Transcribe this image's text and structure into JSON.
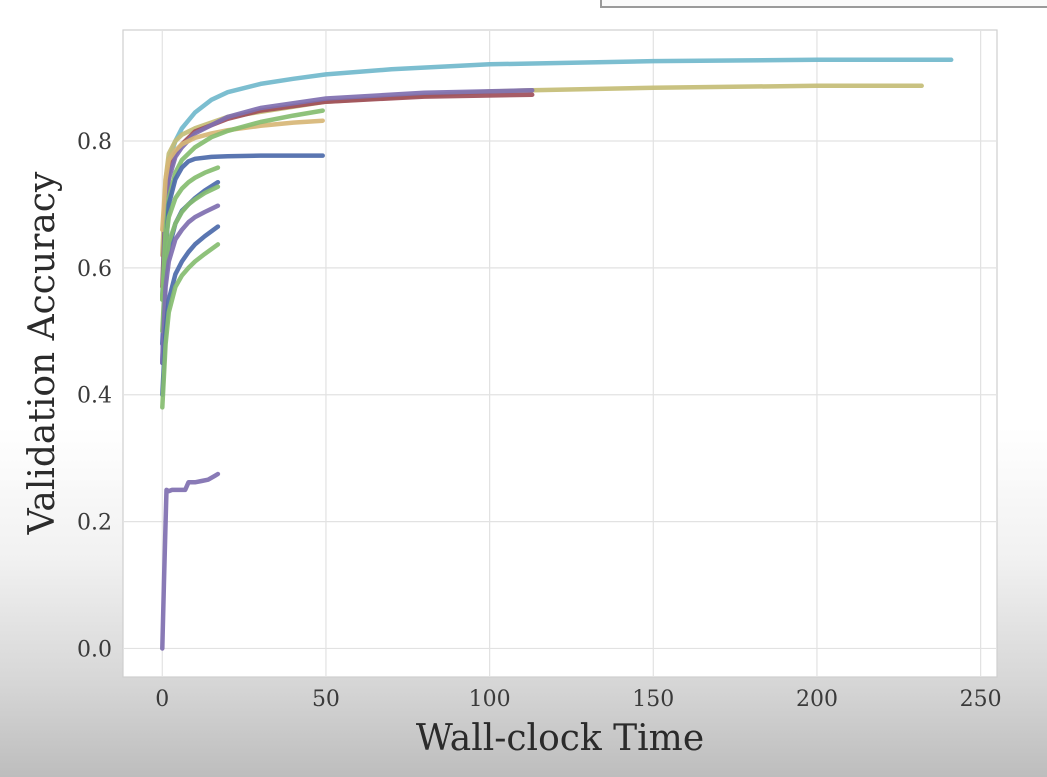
{
  "chart_data": {
    "type": "line",
    "title": "",
    "xlabel": "Wall-clock Time",
    "ylabel": "Validation Accuracy",
    "xlim": [
      -12,
      255
    ],
    "ylim": [
      -0.045,
      0.975
    ],
    "xticks": [
      0,
      50,
      100,
      150,
      200,
      250
    ],
    "yticks": [
      0.0,
      0.2,
      0.4,
      0.6,
      0.8
    ],
    "xtick_labels": [
      "0",
      "50",
      "100",
      "150",
      "200",
      "250"
    ],
    "ytick_labels": [
      "0.0",
      "0.2",
      "0.4",
      "0.6",
      "0.8"
    ],
    "grid": true,
    "legend": "none",
    "series": [
      {
        "color": "#71b8cc",
        "x": [
          0,
          1,
          2,
          4,
          6,
          10,
          15,
          20,
          30,
          40,
          50,
          70,
          100,
          150,
          200,
          241
        ],
        "y": [
          0.55,
          0.72,
          0.77,
          0.8,
          0.82,
          0.845,
          0.865,
          0.877,
          0.89,
          0.898,
          0.905,
          0.913,
          0.921,
          0.926,
          0.928,
          0.928
        ]
      },
      {
        "color": "#c4bd76",
        "x": [
          0,
          1,
          2,
          4,
          6,
          10,
          20,
          50,
          100,
          113,
          150,
          200,
          232
        ],
        "y": [
          0.62,
          0.74,
          0.78,
          0.8,
          0.81,
          0.82,
          0.838,
          0.862,
          0.878,
          0.88,
          0.884,
          0.887,
          0.887
        ]
      },
      {
        "color": "#a04f5a",
        "x": [
          0,
          1,
          2,
          4,
          6,
          10,
          20,
          30,
          50,
          80,
          113
        ],
        "y": [
          0.57,
          0.7,
          0.75,
          0.78,
          0.795,
          0.815,
          0.835,
          0.848,
          0.862,
          0.87,
          0.873
        ]
      },
      {
        "color": "#7f6fb0",
        "x": [
          0,
          1,
          2,
          4,
          6,
          10,
          20,
          30,
          50,
          80,
          113
        ],
        "y": [
          0.55,
          0.69,
          0.74,
          0.775,
          0.79,
          0.812,
          0.838,
          0.852,
          0.867,
          0.876,
          0.88
        ]
      },
      {
        "color": "#d7b676",
        "x": [
          0,
          1,
          2,
          4,
          6,
          10,
          15,
          20,
          30,
          40,
          49
        ],
        "y": [
          0.66,
          0.74,
          0.77,
          0.785,
          0.795,
          0.805,
          0.812,
          0.817,
          0.824,
          0.829,
          0.832
        ]
      },
      {
        "color": "#86bd70",
        "x": [
          0,
          1,
          2,
          4,
          6,
          10,
          15,
          20,
          30,
          40,
          49
        ],
        "y": [
          0.55,
          0.66,
          0.71,
          0.75,
          0.77,
          0.79,
          0.806,
          0.816,
          0.83,
          0.84,
          0.848
        ]
      },
      {
        "color": "#4c6aaa",
        "x": [
          0,
          1,
          2,
          4,
          6,
          8,
          10,
          15,
          20,
          30,
          40,
          49
        ],
        "y": [
          0.45,
          0.62,
          0.7,
          0.74,
          0.758,
          0.768,
          0.772,
          0.775,
          0.776,
          0.777,
          0.777,
          0.777
        ]
      },
      {
        "color": "#86bd70",
        "x": [
          0,
          1,
          2,
          4,
          6,
          8,
          10,
          13,
          17
        ],
        "y": [
          0.55,
          0.64,
          0.68,
          0.71,
          0.725,
          0.735,
          0.742,
          0.75,
          0.758
        ]
      },
      {
        "color": "#4c6aaa",
        "x": [
          0,
          1,
          2,
          4,
          6,
          8,
          10,
          13,
          17
        ],
        "y": [
          0.48,
          0.59,
          0.63,
          0.67,
          0.69,
          0.7,
          0.71,
          0.722,
          0.735
        ]
      },
      {
        "color": "#86bd70",
        "x": [
          0,
          1,
          2,
          4,
          6,
          8,
          10,
          13,
          17
        ],
        "y": [
          0.5,
          0.6,
          0.64,
          0.67,
          0.688,
          0.7,
          0.708,
          0.718,
          0.728
        ]
      },
      {
        "color": "#7f6fb0",
        "x": [
          0,
          1,
          2,
          4,
          6,
          8,
          10,
          13,
          17
        ],
        "y": [
          0.45,
          0.57,
          0.61,
          0.645,
          0.66,
          0.672,
          0.68,
          0.688,
          0.698
        ]
      },
      {
        "color": "#4c6aaa",
        "x": [
          0,
          1,
          2,
          4,
          6,
          8,
          10,
          13,
          17
        ],
        "y": [
          0.4,
          0.5,
          0.55,
          0.59,
          0.61,
          0.625,
          0.637,
          0.65,
          0.665
        ]
      },
      {
        "color": "#86bd70",
        "x": [
          0,
          1,
          2,
          4,
          6,
          8,
          10,
          13,
          17
        ],
        "y": [
          0.38,
          0.48,
          0.53,
          0.57,
          0.588,
          0.6,
          0.61,
          0.622,
          0.637
        ]
      },
      {
        "color": "#7f6fb0",
        "x": [
          0,
          0.5,
          1,
          1.3,
          2,
          3,
          5,
          7,
          8,
          10,
          12,
          14,
          16,
          17
        ],
        "y": [
          0.0,
          0.1,
          0.2,
          0.25,
          0.248,
          0.25,
          0.25,
          0.25,
          0.262,
          0.262,
          0.264,
          0.266,
          0.272,
          0.275
        ]
      }
    ]
  }
}
